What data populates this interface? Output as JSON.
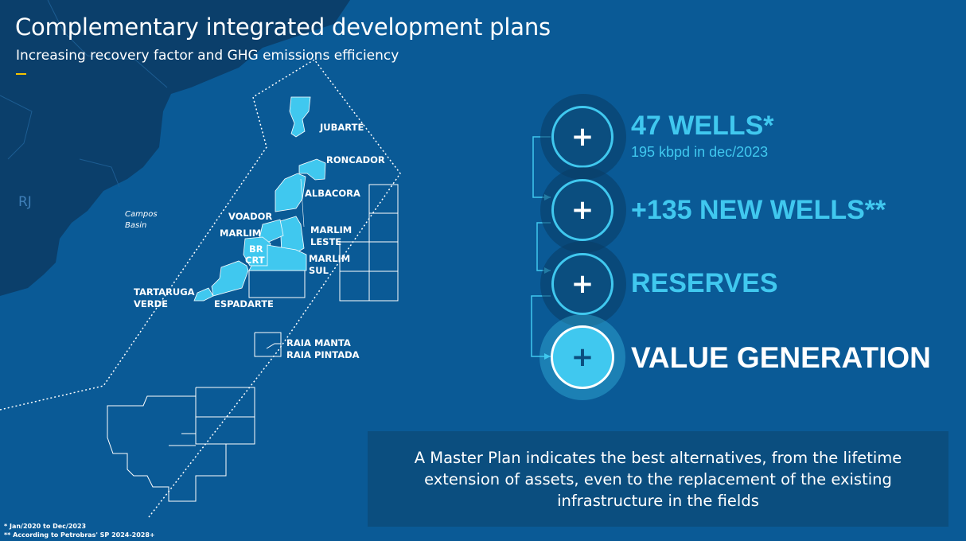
{
  "header": {
    "title": "Complementary integrated development plans",
    "subtitle": "Increasing recovery factor and GHG emissions efficiency"
  },
  "map": {
    "state_label": "RJ",
    "basin_label": [
      "Campos",
      "Basin"
    ],
    "fields": {
      "jubarte": "JUBARTE",
      "roncador": "RONCADOR",
      "albacora": "ALBACORA",
      "voador": "VOADOR",
      "marlim": "MARLIM",
      "marlim_leste": [
        "MARLIM",
        "LESTE"
      ],
      "marlim_sul": [
        "MARLIM",
        "SUL"
      ],
      "br": "BR",
      "crt": "CRT",
      "tartaruga_verde": [
        "TARTARUGA",
        "VERDE"
      ],
      "espadarte": "ESPADARTE",
      "raia": [
        "RAIA MANTA",
        "RAIA PINTADA"
      ]
    },
    "colors": {
      "field_fill": "#40c8ef",
      "land": "#0b3f6b",
      "sea": "#0a5a96"
    }
  },
  "items": [
    {
      "icon": "plus-icon",
      "heading": "47 WELLS*",
      "sub": "195 kbpd in dec/2023"
    },
    {
      "icon": "plus-icon",
      "heading": "+135 NEW WELLS**"
    },
    {
      "icon": "plus-icon",
      "heading": "RESERVES"
    },
    {
      "icon": "plus-icon",
      "heading": "VALUE GENERATION"
    }
  ],
  "plus_symbol": "+",
  "note": "A Master Plan indicates the best alternatives, from the lifetime extension of assets, even to the replacement of the existing infrastructure in the fields",
  "footnotes": [
    "* Jan/2020 to Dec/2023",
    "** According to Petrobras' SP 2024-2028+"
  ],
  "colors": {
    "accent": "#40c8ef",
    "dash": "#f5c400",
    "box": "#0b4e7f"
  }
}
